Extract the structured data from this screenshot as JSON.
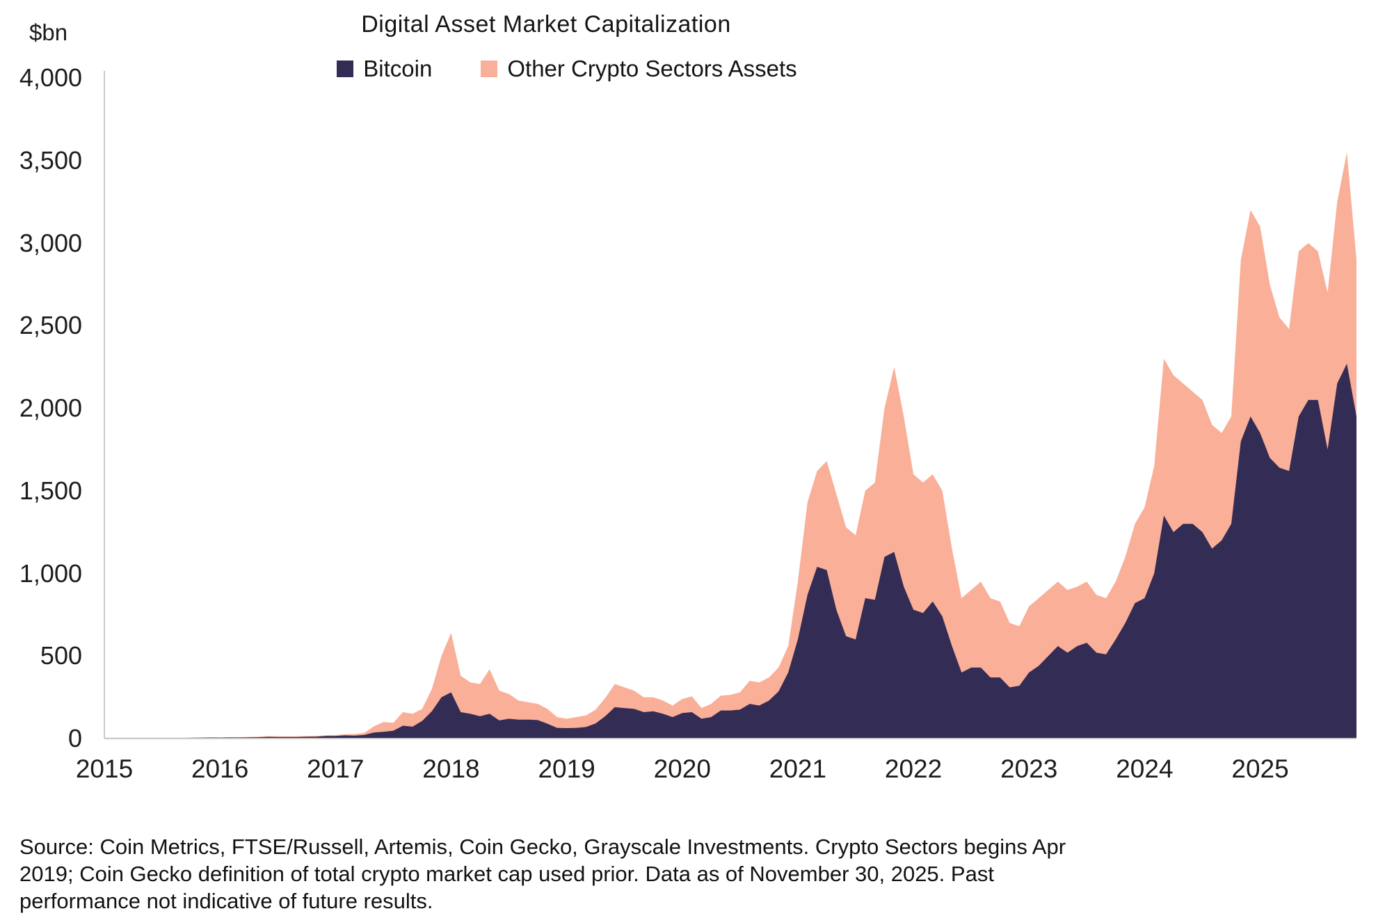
{
  "title": "Digital Asset Market Capitalization",
  "y_unit_label": "$bn",
  "legend": {
    "items": [
      {
        "label": "Bitcoin",
        "color": "#332C54"
      },
      {
        "label": "Other Crypto Sectors Assets",
        "color": "#F9AF98"
      }
    ]
  },
  "footer": "Source: Coin Metrics, FTSE/Russell, Artemis, Coin Gecko, Grayscale Investments. Crypto Sectors begins Apr 2019; Coin Gecko definition of total crypto market cap used prior. Data as of November 30, 2025. Past performance not indicative of future results.",
  "chart_data": {
    "type": "area",
    "stacked": true,
    "title": "Digital Asset Market Capitalization",
    "ylabel": "$bn",
    "xlabel": "",
    "grid": false,
    "legend_position": "top",
    "x_start_year": 2015,
    "x_interval": "monthly",
    "x_tick_labels": [
      "2015",
      "2016",
      "2017",
      "2018",
      "2019",
      "2020",
      "2021",
      "2022",
      "2023",
      "2024",
      "2025"
    ],
    "y_ticks": [
      0,
      500,
      1000,
      1500,
      2000,
      2500,
      3000,
      3500,
      4000
    ],
    "ylim": [
      0,
      4000
    ],
    "axis_color": "#c9c9c9",
    "series": [
      {
        "name": "Bitcoin",
        "color": "#332C54",
        "values": [
          3.5,
          3.5,
          3.4,
          3.3,
          3.3,
          3.8,
          4,
          3.3,
          3.4,
          4.5,
          5.3,
          6.5,
          5.8,
          6.7,
          6.4,
          7,
          8.2,
          10.5,
          9.7,
          9.3,
          9.7,
          11,
          11.8,
          15.5,
          15.5,
          19.5,
          17.5,
          22,
          37,
          41,
          47,
          78,
          72,
          107,
          165,
          250,
          280,
          160,
          150,
          135,
          150,
          110,
          120,
          115,
          115,
          112,
          90,
          65,
          63,
          65,
          70,
          92,
          135,
          190,
          185,
          180,
          160,
          165,
          150,
          130,
          155,
          160,
          120,
          130,
          170,
          170,
          175,
          210,
          200,
          230,
          285,
          400,
          600,
          870,
          1040,
          1020,
          780,
          620,
          600,
          850,
          840,
          1100,
          1130,
          920,
          780,
          760,
          830,
          740,
          560,
          400,
          430,
          430,
          370,
          370,
          310,
          320,
          400,
          440,
          500,
          560,
          520,
          560,
          580,
          520,
          510,
          600,
          700,
          820,
          850,
          1000,
          1350,
          1250,
          1300,
          1300,
          1250,
          1150,
          1200,
          1300,
          1800,
          1950,
          1850,
          1700,
          1640,
          1620,
          1950,
          2050,
          2050,
          1750,
          2150,
          2270,
          1950
        ]
      },
      {
        "name": "Other Crypto Sectors Assets",
        "color": "#F9AF98",
        "values": [
          1.5,
          1.5,
          1.6,
          1.7,
          1.7,
          1.7,
          2,
          1.7,
          1.6,
          2,
          1.7,
          1.5,
          1.7,
          1.8,
          2.6,
          3,
          3.3,
          4,
          3.8,
          3.7,
          3.8,
          4,
          4.2,
          4.5,
          5.5,
          6.5,
          9.5,
          13,
          38,
          59,
          48,
          82,
          78,
          73,
          135,
          250,
          360,
          220,
          190,
          195,
          270,
          180,
          150,
          115,
          105,
          98,
          90,
          65,
          57,
          65,
          70,
          83,
          110,
          140,
          125,
          110,
          90,
          85,
          80,
          70,
          85,
          95,
          65,
          80,
          90,
          95,
          105,
          140,
          140,
          140,
          145,
          160,
          350,
          560,
          580,
          660,
          700,
          660,
          630,
          650,
          710,
          900,
          1120,
          1030,
          820,
          790,
          770,
          760,
          590,
          450,
          470,
          520,
          480,
          460,
          390,
          360,
          400,
          410,
          400,
          390,
          380,
          360,
          370,
          350,
          340,
          350,
          400,
          480,
          550,
          650,
          950,
          950,
          850,
          800,
          800,
          750,
          650,
          650,
          1100,
          1250,
          1250,
          1050,
          910,
          860,
          1000,
          950,
          900,
          950,
          1100,
          1280,
          950
        ]
      }
    ]
  }
}
